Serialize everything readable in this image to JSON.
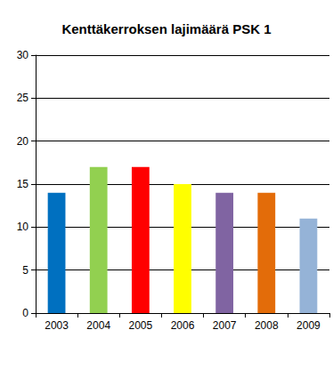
{
  "chart_data": {
    "type": "bar",
    "title": "Kenttäkerroksen lajimäärä PSK 1",
    "categories": [
      "2003",
      "2004",
      "2005",
      "2006",
      "2007",
      "2008",
      "2009"
    ],
    "values": [
      14,
      17,
      17,
      15,
      14,
      14,
      11
    ],
    "colors": [
      "#0070c0",
      "#92d050",
      "#ff0000",
      "#ffff00",
      "#8064a2",
      "#e36c09",
      "#95b3d7"
    ],
    "ylim": [
      0,
      30
    ],
    "yticks": [
      0,
      5,
      10,
      15,
      20,
      25,
      30
    ],
    "grid": true
  }
}
